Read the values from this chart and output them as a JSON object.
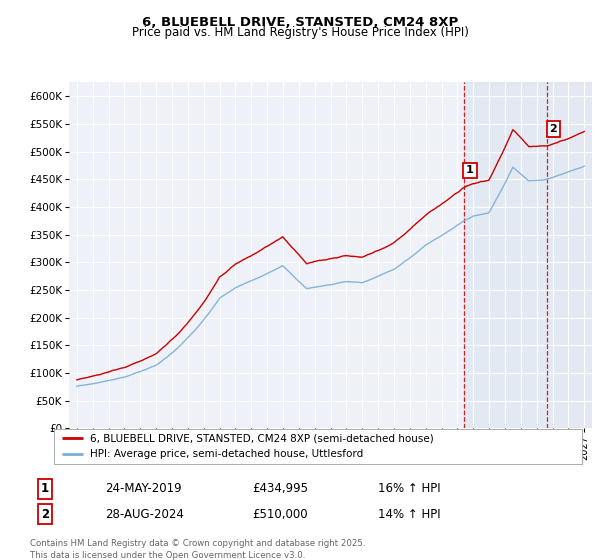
{
  "title1": "6, BLUEBELL DRIVE, STANSTED, CM24 8XP",
  "title2": "Price paid vs. HM Land Registry's House Price Index (HPI)",
  "ylabel_ticks": [
    "£0",
    "£50K",
    "£100K",
    "£150K",
    "£200K",
    "£250K",
    "£300K",
    "£350K",
    "£400K",
    "£450K",
    "£500K",
    "£550K",
    "£600K"
  ],
  "ytick_values": [
    0,
    50000,
    100000,
    150000,
    200000,
    250000,
    300000,
    350000,
    400000,
    450000,
    500000,
    550000,
    600000
  ],
  "ylim": [
    0,
    625000
  ],
  "xlim_start": 1994.5,
  "xlim_end": 2027.5,
  "red_line_color": "#cc0000",
  "blue_line_color": "#7aaed6",
  "background_color": "#ffffff",
  "plot_bg_color": "#eef2f8",
  "grid_color": "#ffffff",
  "legend_label_red": "6, BLUEBELL DRIVE, STANSTED, CM24 8XP (semi-detached house)",
  "legend_label_blue": "HPI: Average price, semi-detached house, Uttlesford",
  "marker1_label": "1",
  "marker1_date": "24-MAY-2019",
  "marker1_price": "£434,995",
  "marker1_hpi": "16% ↑ HPI",
  "marker1_x": 2019.39,
  "marker1_y": 434995,
  "marker2_label": "2",
  "marker2_date": "28-AUG-2024",
  "marker2_price": "£510,000",
  "marker2_hpi": "14% ↑ HPI",
  "marker2_x": 2024.66,
  "marker2_y": 510000,
  "vline1_x": 2019.39,
  "vline2_x": 2024.66,
  "copyright_text": "Contains HM Land Registry data © Crown copyright and database right 2025.\nThis data is licensed under the Open Government Licence v3.0.",
  "shaded_region_start": 2019.39,
  "shaded_region_end": 2027.5
}
